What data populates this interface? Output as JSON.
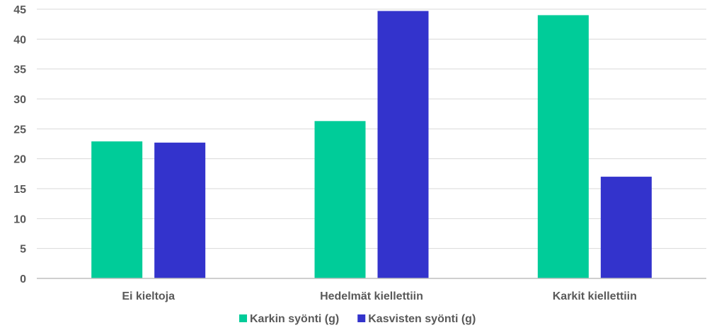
{
  "chart_data": {
    "type": "bar",
    "categories": [
      "Ei kieltoja",
      "Hedelmät kiellettiin",
      "Karkit kiellettiin"
    ],
    "series": [
      {
        "name": "Karkin syönti (g)",
        "values": [
          22.9,
          26.3,
          44.0
        ],
        "color": "#00cc99"
      },
      {
        "name": "Kasvisten syönti (g)",
        "values": [
          22.7,
          44.7,
          17.0
        ],
        "color": "#3333cc"
      }
    ],
    "ylim": [
      0,
      45
    ],
    "yticks": [
      0,
      5,
      10,
      15,
      20,
      25,
      30,
      35,
      40,
      45
    ],
    "grid": true,
    "legend": "bottom"
  }
}
